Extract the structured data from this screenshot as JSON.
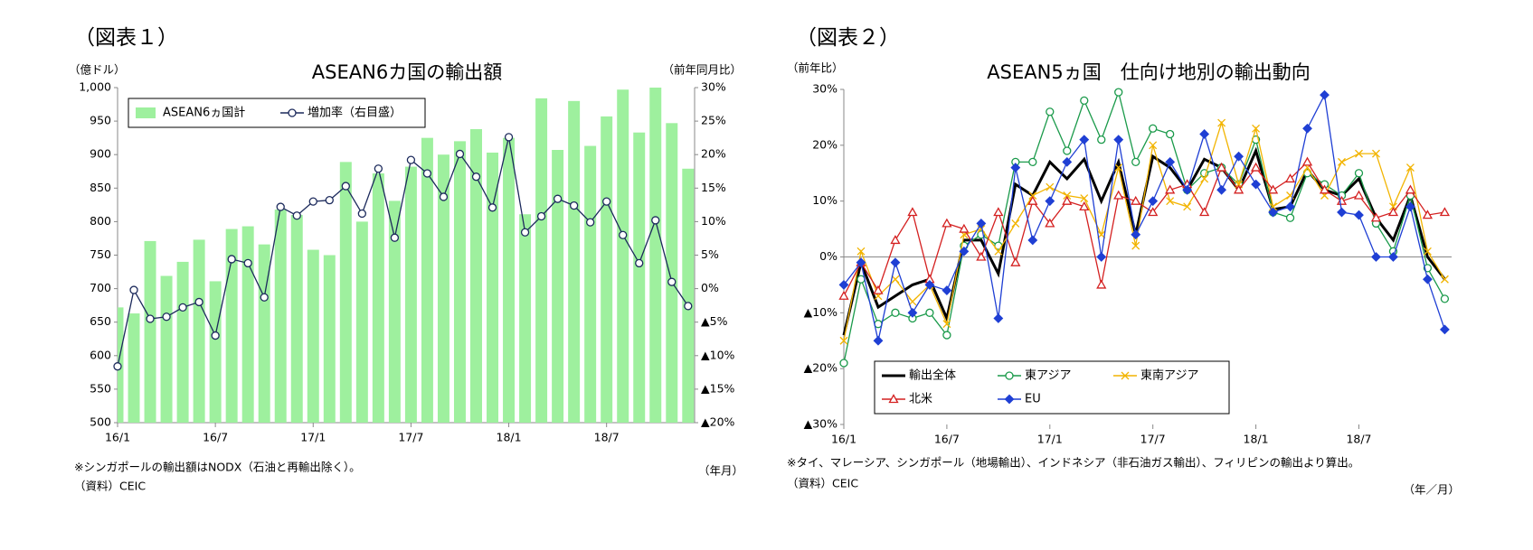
{
  "chart_data": [
    {
      "type": "bar",
      "figure_label": "（図表１）",
      "title": "ASEAN6カ国の輸出額",
      "y_axis_label": "（億ドル）",
      "y2_axis_label": "（前年同月比）",
      "x_axis_label": "（年月）",
      "notes": [
        "※シンガポールの輸出額はNODX（石油と再輸出除く）。",
        "（資料）CEIC"
      ],
      "categories": [
        "16/1",
        null,
        null,
        null,
        null,
        null,
        "16/7",
        null,
        null,
        null,
        null,
        null,
        "17/1",
        null,
        null,
        null,
        null,
        null,
        "17/7",
        null,
        null,
        null,
        null,
        null,
        "18/1",
        null,
        null,
        null,
        null,
        null,
        "18/7",
        null,
        null,
        null,
        null,
        null
      ],
      "ylim": [
        500,
        1000
      ],
      "yticks": [
        500,
        550,
        600,
        650,
        700,
        750,
        800,
        850,
        900,
        950,
        {
          "value": 1000,
          "label": "1,000"
        }
      ],
      "y2lim": [
        -20,
        30
      ],
      "y2ticks": [
        {
          "value": -20,
          "label": "▲20%"
        },
        {
          "value": -15,
          "label": "▲15%"
        },
        {
          "value": -10,
          "label": "▲10%"
        },
        {
          "value": -5,
          "label": "▲5%"
        },
        {
          "value": 0,
          "label": "0%"
        },
        {
          "value": 5,
          "label": "5%"
        },
        {
          "value": 10,
          "label": "10%"
        },
        {
          "value": 15,
          "label": "15%"
        },
        {
          "value": 20,
          "label": "20%"
        },
        {
          "value": 25,
          "label": "25%"
        },
        {
          "value": 30,
          "label": "30%"
        }
      ],
      "grid": false,
      "legend": "upper-left",
      "series": [
        {
          "name": "ASEAN6ヵ国計",
          "type": "bar",
          "color": "#9ef09e",
          "values": [
            672,
            663,
            771,
            719,
            740,
            773,
            711,
            789,
            793,
            766,
            818,
            810,
            758,
            750,
            889,
            800,
            872,
            831,
            882,
            925,
            900,
            920,
            938,
            903,
            925,
            811,
            984,
            907,
            980,
            913,
            957,
            997,
            933,
            1000,
            947,
            879
          ]
        },
        {
          "name": "増加率（右目盛）",
          "type": "line",
          "axis": "y2",
          "color": "#1c2a5c",
          "marker": "circle",
          "values": [
            -11.6,
            -0.2,
            -4.5,
            -4.2,
            -2.8,
            -2.0,
            -7.0,
            4.4,
            3.8,
            -1.3,
            12.2,
            10.9,
            13.0,
            13.2,
            15.3,
            11.2,
            17.9,
            7.6,
            19.2,
            17.2,
            13.7,
            20.1,
            16.7,
            12.1,
            22.6,
            8.4,
            10.8,
            13.4,
            12.4,
            9.9,
            13.0,
            8.0,
            3.8,
            10.2,
            1.0,
            -2.6
          ]
        }
      ]
    },
    {
      "type": "line",
      "figure_label": "（図表２）",
      "title": "ASEAN5ヵ国　仕向け地別の輸出動向",
      "y_axis_label": "（前年比）",
      "x_axis_label": "（年／月）",
      "notes": [
        "※タイ、マレーシア、シンガポール（地場輸出）、インドネシア（非石油ガス輸出）、フィリピンの輸出より算出。",
        "（資料）CEIC"
      ],
      "categories": [
        "16/1",
        null,
        null,
        null,
        null,
        null,
        "16/7",
        null,
        null,
        null,
        null,
        null,
        "17/1",
        null,
        null,
        null,
        null,
        null,
        "17/7",
        null,
        null,
        null,
        null,
        null,
        "18/1",
        null,
        null,
        null,
        null,
        null,
        "18/7",
        null,
        null,
        null,
        null,
        null
      ],
      "ylim": [
        -30,
        30
      ],
      "yticks": [
        {
          "value": -30,
          "label": "▲30%"
        },
        {
          "value": -20,
          "label": "▲20%"
        },
        {
          "value": -10,
          "label": "▲10%"
        },
        {
          "value": 0,
          "label": "0%"
        },
        {
          "value": 10,
          "label": "10%"
        },
        {
          "value": 20,
          "label": "20%"
        },
        {
          "value": 30,
          "label": "30%"
        }
      ],
      "grid": false,
      "legend": "lower-left",
      "series": [
        {
          "name": "輸出全体",
          "color": "#000000",
          "marker": "none",
          "values": [
            -14,
            -1,
            -9,
            -7,
            -5,
            -4,
            -11,
            3,
            3,
            -3,
            13,
            11,
            17,
            14,
            17.5,
            10,
            17,
            4,
            18,
            16,
            12,
            17.5,
            16,
            12,
            19,
            8.5,
            9,
            15.5,
            12,
            11,
            14,
            7,
            3,
            11,
            0,
            -4
          ]
        },
        {
          "name": "東アジア",
          "color": "#1a9a4a",
          "marker": "circle",
          "values": [
            -19,
            -4,
            -12,
            -10,
            -11,
            -10,
            -14,
            2,
            4,
            2,
            17,
            17,
            26,
            19,
            28,
            21,
            29.5,
            17,
            23,
            22,
            12,
            15,
            16,
            13,
            21,
            8,
            7,
            15,
            13,
            11,
            15,
            6,
            1,
            11,
            -2,
            -7.5
          ]
        },
        {
          "name": "東南アジア",
          "color": "#f2b400",
          "marker": "x",
          "values": [
            -15,
            1,
            -7,
            -4,
            -8,
            -5,
            -12,
            4,
            5,
            1,
            6,
            11,
            12.5,
            11,
            10.5,
            4,
            16,
            2,
            20,
            10,
            9,
            14,
            24,
            13,
            23,
            9,
            11,
            16,
            11,
            17,
            18.5,
            18.5,
            9,
            16,
            1,
            -4
          ]
        },
        {
          "name": "北米",
          "color": "#d42020",
          "marker": "triangle",
          "values": [
            -7,
            -1,
            -6,
            3,
            8,
            -4,
            6,
            5,
            0,
            8,
            -1,
            10,
            6,
            10,
            9,
            -5,
            11,
            10,
            8,
            12,
            13,
            8,
            16,
            12,
            16,
            12,
            14,
            17,
            12,
            10,
            11,
            7,
            8,
            12,
            7.5,
            8
          ]
        },
        {
          "name": "EU",
          "color": "#1f3fd4",
          "marker": "diamond",
          "values": [
            -5,
            -1,
            -15,
            -1,
            -10,
            -5,
            -6,
            1,
            6,
            -11,
            16,
            3,
            10,
            17,
            21,
            0,
            21,
            4,
            10,
            17,
            12,
            22,
            12,
            18,
            13,
            8,
            9,
            23,
            29,
            8,
            7.5,
            0,
            0,
            9,
            -4,
            -13
          ]
        }
      ]
    }
  ]
}
